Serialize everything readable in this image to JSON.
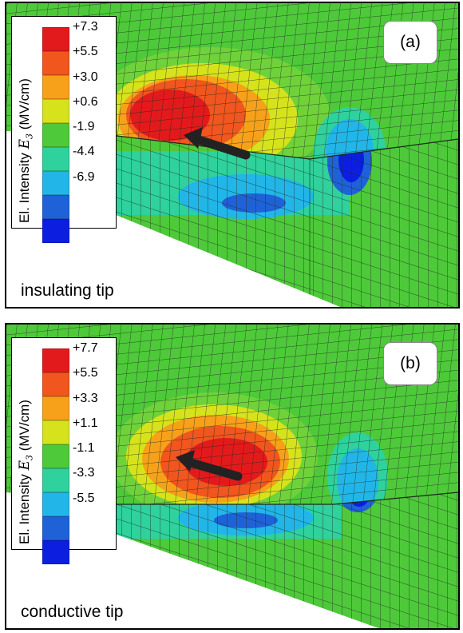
{
  "panels": [
    {
      "label": "(a)",
      "caption": "insulating tip",
      "legend": {
        "title_prefix": "El. Intensity",
        "symbol": "E",
        "subscript": "3",
        "unit": "(MV/cm)",
        "ticks": [
          "+7.3",
          "+5.5",
          "+3.0",
          "+0.6",
          "-1.9",
          "-4.4",
          "-6.9"
        ]
      }
    },
    {
      "label": "(b)",
      "caption": "conductive tip",
      "legend": {
        "title_prefix": "El. Intensity",
        "symbol": "E",
        "subscript": "3",
        "unit": "(MV/cm)",
        "ticks": [
          "+7.7",
          "+5.5",
          "+3.3",
          "+1.1",
          "-1.1",
          "-3.3",
          "-5.5"
        ]
      }
    }
  ],
  "colors": {
    "bands": [
      "#e31a1c",
      "#f0561e",
      "#f7a11a",
      "#d6e31c",
      "#4ec93a",
      "#2fd19c",
      "#22b6e8",
      "#1f62d8",
      "#0c1ee0"
    ],
    "mesh_line": "#1b2a1b",
    "arrow": "#222222"
  }
}
